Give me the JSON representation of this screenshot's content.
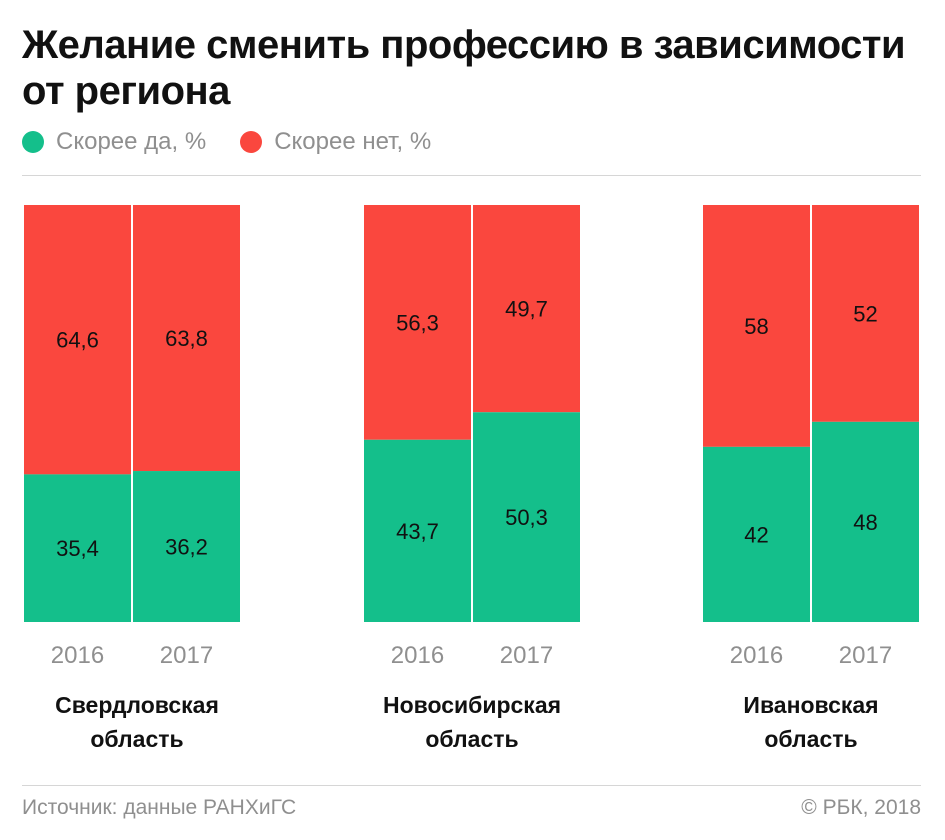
{
  "title": "Желание сменить профессию в зависимости от региона",
  "legend": {
    "yes_label": "Скорее да, %",
    "no_label": "Скорее нет, %"
  },
  "colors": {
    "yes": "#14bf8b",
    "no": "#fa473e"
  },
  "chart_data": {
    "type": "bar",
    "stacked": true,
    "title": "Желание сменить профессию в зависимости от региона",
    "ylim": [
      0,
      100
    ],
    "groups": [
      {
        "name": "Свердловская область",
        "categories": [
          "2016",
          "2017"
        ],
        "yes": [
          35.4,
          36.2
        ],
        "no": [
          64.6,
          63.8
        ],
        "yes_labels": [
          "35,4",
          "36,2"
        ],
        "no_labels": [
          "64,6",
          "63,8"
        ]
      },
      {
        "name": "Новосибирская область",
        "categories": [
          "2016",
          "2017"
        ],
        "yes": [
          43.7,
          50.3
        ],
        "no": [
          56.3,
          49.7
        ],
        "yes_labels": [
          "43,7",
          "50,3"
        ],
        "no_labels": [
          "56,3",
          "49,7"
        ]
      },
      {
        "name": "Ивановская область",
        "categories": [
          "2016",
          "2017"
        ],
        "yes": [
          42,
          48
        ],
        "no": [
          58,
          52
        ],
        "yes_labels": [
          "42",
          "48"
        ],
        "no_labels": [
          "58",
          "52"
        ]
      }
    ],
    "series": [
      {
        "name": "Скорее да, %",
        "key": "yes"
      },
      {
        "name": "Скорее нет, %",
        "key": "no"
      }
    ],
    "legend_position": "top-left",
    "grid": false
  },
  "regions": [
    {
      "line1": "Свердловская",
      "line2": "область"
    },
    {
      "line1": "Новосибирская",
      "line2": "область"
    },
    {
      "line1": "Ивановская",
      "line2": "область"
    }
  ],
  "footer": {
    "source": "Источник: данные РАНХиГС",
    "copyright": "© РБК, 2018"
  }
}
